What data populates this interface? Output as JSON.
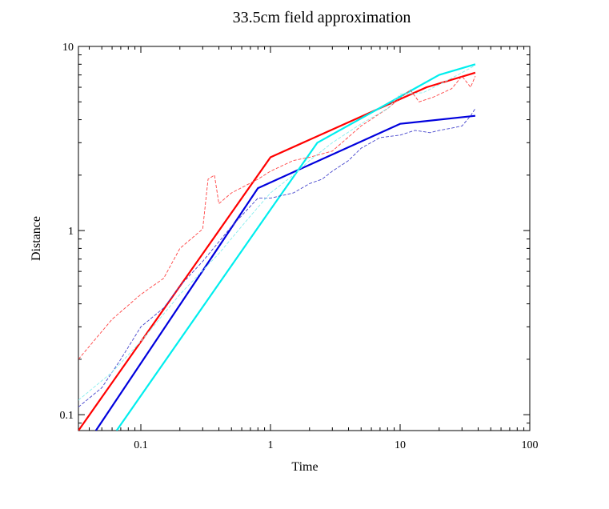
{
  "chart_data": {
    "type": "line",
    "title": "33.5cm field approximation",
    "xlabel": "Time",
    "ylabel": "Distance",
    "x_scale": "log",
    "y_scale": "log",
    "xlim": [
      0.033,
      100
    ],
    "ylim": [
      0.082,
      10
    ],
    "x_ticks": [
      {
        "value": 0.1,
        "label": "0.1"
      },
      {
        "value": 1,
        "label": "1"
      },
      {
        "value": 10,
        "label": "10"
      },
      {
        "value": 100,
        "label": "100"
      }
    ],
    "y_ticks": [
      {
        "value": 0.1,
        "label": "0.1"
      },
      {
        "value": 1,
        "label": "1"
      },
      {
        "value": 10,
        "label": "10"
      }
    ],
    "grid": false,
    "legend": "none",
    "series": [
      {
        "color": "#ff0000",
        "style": "solid",
        "x": [
          0.033,
          1.0,
          16,
          38
        ],
        "y": [
          0.082,
          2.5,
          6.0,
          7.2
        ]
      },
      {
        "color": "#0000dd",
        "style": "solid",
        "x": [
          0.045,
          0.8,
          10,
          38
        ],
        "y": [
          0.082,
          1.7,
          3.8,
          4.2
        ]
      },
      {
        "color": "#00eeee",
        "style": "solid",
        "x": [
          0.065,
          1.0,
          2.3,
          20,
          38
        ],
        "y": [
          0.082,
          1.3,
          3.0,
          7.0,
          8.0
        ]
      },
      {
        "color": "#ff4444",
        "style": "dashed",
        "x": [
          0.033,
          0.06,
          0.1,
          0.15,
          0.2,
          0.3,
          0.33,
          0.37,
          0.4,
          0.5,
          0.8,
          1.0,
          1.5,
          2.0,
          3.0,
          5.0,
          8.0,
          12,
          14,
          18,
          25,
          30,
          35,
          38
        ],
        "y": [
          0.2,
          0.33,
          0.45,
          0.55,
          0.8,
          1.02,
          1.9,
          2.0,
          1.4,
          1.6,
          1.9,
          2.1,
          2.4,
          2.5,
          2.7,
          3.7,
          4.6,
          5.8,
          5.0,
          5.3,
          5.9,
          6.9,
          6.0,
          6.9
        ]
      },
      {
        "color": "#4444cc",
        "style": "dashed",
        "x": [
          0.033,
          0.05,
          0.07,
          0.1,
          0.15,
          0.2,
          0.3,
          0.5,
          0.8,
          1.0,
          1.5,
          2.0,
          2.5,
          3.0,
          4.0,
          5.0,
          7.0,
          10,
          13,
          17,
          20,
          25,
          30,
          35,
          38
        ],
        "y": [
          0.11,
          0.14,
          0.2,
          0.3,
          0.38,
          0.5,
          0.68,
          1.05,
          1.5,
          1.5,
          1.6,
          1.8,
          1.9,
          2.1,
          2.4,
          2.8,
          3.2,
          3.3,
          3.5,
          3.4,
          3.5,
          3.6,
          3.7,
          4.2,
          4.6
        ]
      },
      {
        "color": "#88eeee",
        "style": "dashed",
        "x": [
          0.033,
          0.06,
          0.1,
          0.2,
          0.4,
          0.7,
          1.0,
          1.5,
          2.0,
          3.0,
          5.0,
          8.0,
          10,
          15,
          20,
          30,
          38
        ],
        "y": [
          0.12,
          0.17,
          0.25,
          0.45,
          0.75,
          1.2,
          1.6,
          2.0,
          2.4,
          3.0,
          3.8,
          4.6,
          5.5,
          5.6,
          6.2,
          7.2,
          7.9
        ]
      }
    ]
  }
}
